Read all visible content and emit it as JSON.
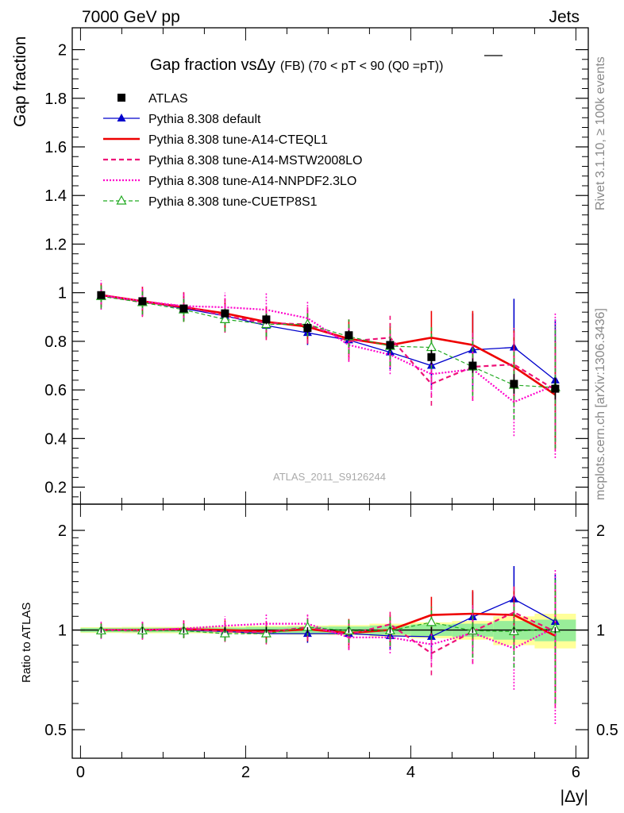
{
  "header": {
    "left": "7000 GeV pp",
    "right": "Jets",
    "analysis_id": "ATLAS_2011_S9126244",
    "side_top": "Rivet 3.1.10, ≥ 100k events",
    "side_bottom": "mcplots.cern.ch [arXiv:1306.3436]"
  },
  "colors": {
    "atlas": "#000000",
    "default": "#0000cc",
    "cteql1": "#ee0000",
    "mstw": "#ee1177",
    "nnpdf": "#ff00cc",
    "cuetp8s1": "#22aa22",
    "band_inner": "#99ee99",
    "band_outer": "#ffff99"
  },
  "chart_data": [
    {
      "type": "line",
      "title": "Gap fraction vsΔy",
      "title_suffix": "(FB) (70 < pT <  90 (Q0 =pT))",
      "ylabel": "Gap fraction",
      "xlabel": "|Δy|",
      "xlim": [
        -0.1,
        6.15
      ],
      "ylim": [
        0.13,
        2.09
      ],
      "yticks": [
        0.2,
        0.4,
        0.6,
        0.8,
        1,
        1.2,
        1.4,
        1.6,
        1.8,
        2
      ],
      "ytick_labels": [
        "0.2",
        "0.4",
        "0.6",
        "0.8",
        "1",
        "1.2",
        "1.4",
        "1.6",
        "1.8",
        "2"
      ],
      "x": [
        0.25,
        0.75,
        1.25,
        1.75,
        2.25,
        2.75,
        3.25,
        3.75,
        4.25,
        4.75,
        5.25,
        5.75
      ],
      "legend_position": "top-left",
      "series": [
        {
          "name": "ATLAS",
          "style": "data",
          "values": [
            0.99,
            0.965,
            0.935,
            0.915,
            0.89,
            0.855,
            0.825,
            0.785,
            0.735,
            0.7,
            0.625,
            0.605
          ],
          "errors": [
            0.015,
            0.015,
            0.015,
            0.015,
            0.02,
            0.02,
            0.02,
            0.025,
            0.03,
            0.03,
            0.04,
            0.045
          ]
        },
        {
          "name": "Pythia 8.308 default",
          "style": "default",
          "values": [
            0.99,
            0.965,
            0.935,
            0.905,
            0.865,
            0.835,
            0.805,
            0.755,
            0.7,
            0.765,
            0.775,
            0.64
          ],
          "errors": [
            0.04,
            0.05,
            0.05,
            0.05,
            0.05,
            0.05,
            0.06,
            0.07,
            0.1,
            0.15,
            0.2,
            0.25
          ]
        },
        {
          "name": "Pythia 8.308 tune-A14-CTEQL1",
          "style": "cteql1",
          "values": [
            0.99,
            0.965,
            0.94,
            0.915,
            0.88,
            0.86,
            0.81,
            0.785,
            0.815,
            0.785,
            0.695,
            0.58
          ],
          "errors": [
            0.05,
            0.06,
            0.06,
            0.06,
            0.06,
            0.07,
            0.08,
            0.09,
            0.11,
            0.14,
            0.15,
            0.22
          ]
        },
        {
          "name": "Pythia 8.308 tune-A14-MSTW2008LO",
          "style": "mstw",
          "values": [
            0.99,
            0.96,
            0.945,
            0.905,
            0.875,
            0.87,
            0.8,
            0.815,
            0.625,
            0.695,
            0.705,
            0.6
          ],
          "errors": [
            0.05,
            0.06,
            0.06,
            0.07,
            0.07,
            0.08,
            0.08,
            0.09,
            0.09,
            0.14,
            0.15,
            0.25
          ]
        },
        {
          "name": "Pythia 8.308 tune-A14-NNPDF2.3LO",
          "style": "nnpdf",
          "values": [
            0.99,
            0.965,
            0.945,
            0.94,
            0.93,
            0.895,
            0.785,
            0.745,
            0.665,
            0.685,
            0.55,
            0.62
          ],
          "errors": [
            0.06,
            0.06,
            0.05,
            0.06,
            0.07,
            0.07,
            0.07,
            0.08,
            0.09,
            0.13,
            0.14,
            0.3
          ]
        },
        {
          "name": "Pythia 8.308 tune-CUETP8S1",
          "style": "cuetp8s1",
          "values": [
            0.985,
            0.96,
            0.93,
            0.89,
            0.87,
            0.87,
            0.82,
            0.78,
            0.775,
            0.695,
            0.62,
            0.61
          ],
          "errors": [
            0.05,
            0.05,
            0.05,
            0.05,
            0.05,
            0.05,
            0.07,
            0.08,
            0.09,
            0.12,
            0.14,
            0.25
          ]
        }
      ]
    },
    {
      "type": "line",
      "ylabel": "Ratio to ATLAS",
      "xlabel": "|Δy|",
      "scale": "log",
      "xlim": [
        -0.1,
        6.15
      ],
      "ylim": [
        0.41,
        2.4
      ],
      "yticks": [
        0.5,
        1,
        2
      ],
      "ytick_labels": [
        "0.5",
        "1",
        "2"
      ],
      "xticks": [
        0,
        2,
        4,
        6
      ],
      "xtick_labels": [
        "0",
        "2",
        "4",
        "6"
      ],
      "x": [
        0.25,
        0.75,
        1.25,
        1.75,
        2.25,
        2.75,
        3.25,
        3.75,
        4.25,
        4.75,
        5.25,
        5.75
      ],
      "band_inner": [
        0.015,
        0.016,
        0.016,
        0.017,
        0.022,
        0.024,
        0.025,
        0.032,
        0.04,
        0.045,
        0.065,
        0.075
      ],
      "band_outer": [
        0.02,
        0.022,
        0.022,
        0.025,
        0.03,
        0.032,
        0.035,
        0.045,
        0.055,
        0.065,
        0.1,
        0.12
      ],
      "series": [
        {
          "name": "Pythia 8.308 default",
          "style": "default",
          "values": [
            1.0,
            1.0,
            1.0,
            0.99,
            0.975,
            0.975,
            0.975,
            0.96,
            0.955,
            1.095,
            1.24,
            1.06
          ],
          "errors": [
            0.04,
            0.05,
            0.05,
            0.05,
            0.05,
            0.06,
            0.07,
            0.09,
            0.14,
            0.21,
            0.32,
            0.41
          ]
        },
        {
          "name": "Pythia 8.308 tune-A14-CTEQL1",
          "style": "cteql1",
          "values": [
            1.0,
            1.0,
            1.005,
            1.0,
            0.99,
            1.005,
            0.98,
            1.0,
            1.11,
            1.12,
            1.11,
            0.96
          ],
          "errors": [
            0.05,
            0.06,
            0.06,
            0.07,
            0.07,
            0.08,
            0.1,
            0.11,
            0.15,
            0.2,
            0.24,
            0.36
          ]
        },
        {
          "name": "Pythia 8.308 tune-A14-MSTW2008LO",
          "style": "mstw",
          "values": [
            1.0,
            0.995,
            1.01,
            0.99,
            0.985,
            1.02,
            0.97,
            1.04,
            0.85,
            0.99,
            1.13,
            0.99
          ],
          "errors": [
            0.05,
            0.06,
            0.06,
            0.07,
            0.08,
            0.09,
            0.1,
            0.11,
            0.12,
            0.2,
            0.24,
            0.41
          ]
        },
        {
          "name": "Pythia 8.308 tune-A14-NNPDF2.3LO",
          "style": "nnpdf",
          "values": [
            1.0,
            1.0,
            1.01,
            1.03,
            1.045,
            1.045,
            0.95,
            0.95,
            0.905,
            0.98,
            0.88,
            1.02
          ],
          "errors": [
            0.06,
            0.06,
            0.05,
            0.07,
            0.08,
            0.08,
            0.08,
            0.1,
            0.12,
            0.19,
            0.22,
            0.5
          ]
        },
        {
          "name": "Pythia 8.308 tune-CUETP8S1",
          "style": "cuetp8s1",
          "values": [
            0.995,
            0.995,
            0.995,
            0.975,
            0.975,
            1.02,
            0.995,
            0.995,
            1.055,
            0.995,
            0.99,
            1.01
          ],
          "errors": [
            0.05,
            0.05,
            0.05,
            0.05,
            0.06,
            0.06,
            0.08,
            0.1,
            0.12,
            0.17,
            0.22,
            0.41
          ]
        }
      ]
    }
  ]
}
